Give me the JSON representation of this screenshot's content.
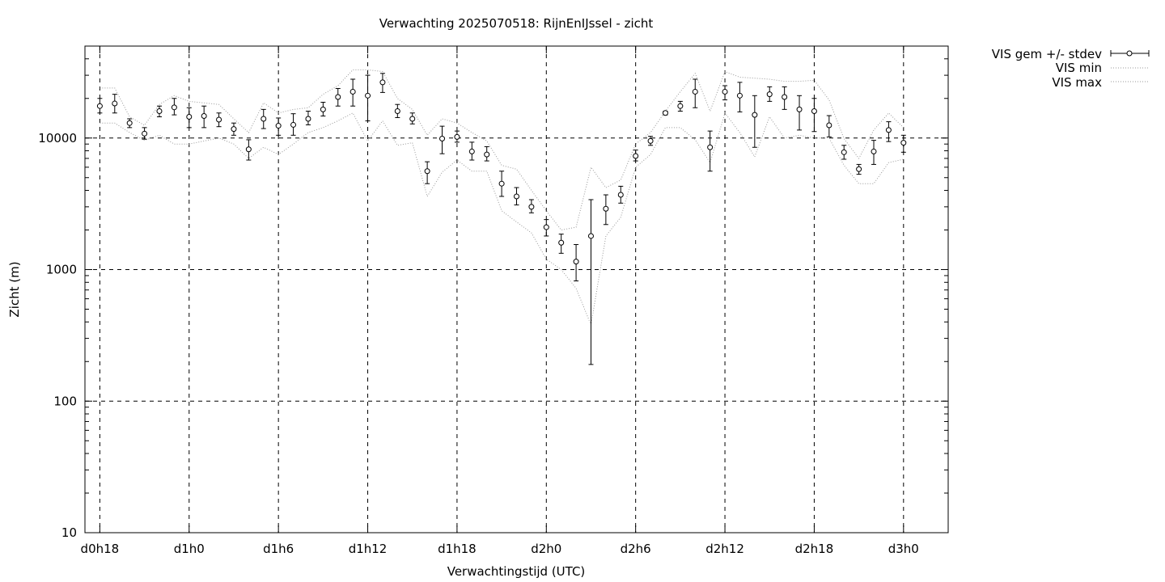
{
  "chart_data": {
    "type": "scatter",
    "title": "Verwachting 2025070518: RijnEnIJssel - zicht",
    "xlabel": "Verwachtingstijd (UTC)",
    "ylabel": "Zicht (m)",
    "yscale": "log",
    "ylim": [
      10,
      50000
    ],
    "xlim_hours": [
      17,
      75
    ],
    "grid": true,
    "legend_position": "top-right-outside",
    "x_ticks": [
      {
        "hour": 18,
        "label": "d0h18"
      },
      {
        "hour": 24,
        "label": "d1h0"
      },
      {
        "hour": 30,
        "label": "d1h6"
      },
      {
        "hour": 36,
        "label": "d1h12"
      },
      {
        "hour": 42,
        "label": "d1h18"
      },
      {
        "hour": 48,
        "label": "d2h0"
      },
      {
        "hour": 54,
        "label": "d2h6"
      },
      {
        "hour": 60,
        "label": "d2h12"
      },
      {
        "hour": 66,
        "label": "d2h18"
      },
      {
        "hour": 72,
        "label": "d3h0"
      }
    ],
    "y_ticks": [
      {
        "value": 10,
        "label": "10"
      },
      {
        "value": 100,
        "label": "100"
      },
      {
        "value": 1000,
        "label": "1000"
      },
      {
        "value": 10000,
        "label": "10000"
      }
    ],
    "legend": [
      {
        "name": "VIS gem +/- stdev",
        "style": "errorbars"
      },
      {
        "name": "VIS min",
        "style": "dotted"
      },
      {
        "name": "VIS max",
        "style": "dotted"
      }
    ],
    "x": [
      18,
      19,
      20,
      21,
      22,
      23,
      24,
      25,
      26,
      27,
      28,
      29,
      30,
      31,
      32,
      33,
      34,
      35,
      36,
      37,
      38,
      39,
      40,
      41,
      42,
      43,
      44,
      45,
      46,
      47,
      48,
      49,
      50,
      51,
      52,
      53,
      54,
      55,
      56,
      57,
      58,
      59,
      60,
      61,
      62,
      63,
      64,
      65,
      66,
      67,
      68,
      69,
      70,
      71,
      72
    ],
    "series": [
      {
        "name": "VIS gem +/- stdev",
        "mean": [
          17500,
          18300,
          13000,
          10800,
          16000,
          17100,
          14500,
          14700,
          13800,
          11700,
          8200,
          14000,
          12400,
          12600,
          14000,
          16500,
          20500,
          22500,
          21000,
          26500,
          16000,
          14000,
          5600,
          9900,
          10200,
          7900,
          7500,
          4500,
          3600,
          3000,
          2100,
          1600,
          1150,
          1800,
          2900,
          3700,
          7300,
          9500,
          15500,
          17500,
          22500,
          8500,
          22500,
          21000,
          15000,
          21500,
          20500,
          16500,
          16000,
          12500,
          7800,
          5800,
          7900,
          11500,
          9200
        ],
        "lower": [
          15500,
          15500,
          12000,
          9800,
          14500,
          15000,
          12000,
          12000,
          12200,
          10500,
          6800,
          11800,
          10500,
          10500,
          12600,
          14700,
          17500,
          17500,
          13500,
          22200,
          14300,
          12800,
          4500,
          7600,
          9300,
          6800,
          6700,
          3600,
          3100,
          2700,
          1800,
          1330,
          820,
          190,
          2200,
          3200,
          6700,
          8800,
          15000,
          16000,
          17000,
          5600,
          19500,
          15800,
          8500,
          19000,
          16500,
          11500,
          11200,
          10200,
          6900,
          5300,
          6300,
          9400,
          7800
        ],
        "upper": [
          20000,
          21500,
          14000,
          12000,
          17500,
          20000,
          17000,
          17500,
          15500,
          13000,
          9700,
          16500,
          14200,
          15300,
          16000,
          18700,
          23800,
          28000,
          30000,
          31000,
          18000,
          15500,
          6600,
          12300,
          11300,
          9300,
          8600,
          5600,
          4200,
          3400,
          2400,
          1860,
          1550,
          3400,
          3700,
          4300,
          8100,
          10300,
          16000,
          19000,
          28000,
          11300,
          25000,
          26500,
          21000,
          24500,
          24500,
          21000,
          20000,
          14800,
          8800,
          6300,
          9600,
          13300,
          10500
        ]
      },
      {
        "name": "VIS min",
        "values": [
          13000,
          13000,
          11000,
          9600,
          10500,
          9000,
          9000,
          9500,
          10000,
          9000,
          7000,
          8500,
          7500,
          9000,
          11000,
          12000,
          13500,
          15500,
          9500,
          13500,
          8800,
          9200,
          3600,
          5500,
          6800,
          5600,
          5600,
          2800,
          2300,
          1900,
          1200,
          1000,
          720,
          380,
          1800,
          2500,
          6000,
          7500,
          12000,
          12000,
          9700,
          6500,
          15500,
          11000,
          7200,
          14500,
          10000,
          10500,
          10000,
          10000,
          6200,
          4500,
          4500,
          6500,
          6900
        ]
      },
      {
        "name": "VIS max",
        "values": [
          24000,
          24000,
          14500,
          12500,
          18000,
          21000,
          19000,
          18500,
          18000,
          14000,
          11000,
          18500,
          15500,
          16500,
          17000,
          21500,
          25000,
          33000,
          33000,
          32000,
          20000,
          16500,
          10500,
          14000,
          13000,
          11000,
          9500,
          6200,
          5800,
          4000,
          2800,
          2000,
          2100,
          6000,
          4200,
          4800,
          9000,
          11000,
          16000,
          22500,
          31000,
          16000,
          32000,
          29000,
          28500,
          28000,
          27000,
          27000,
          27500,
          19500,
          9900,
          7000,
          11500,
          15500,
          12000
        ]
      }
    ]
  }
}
